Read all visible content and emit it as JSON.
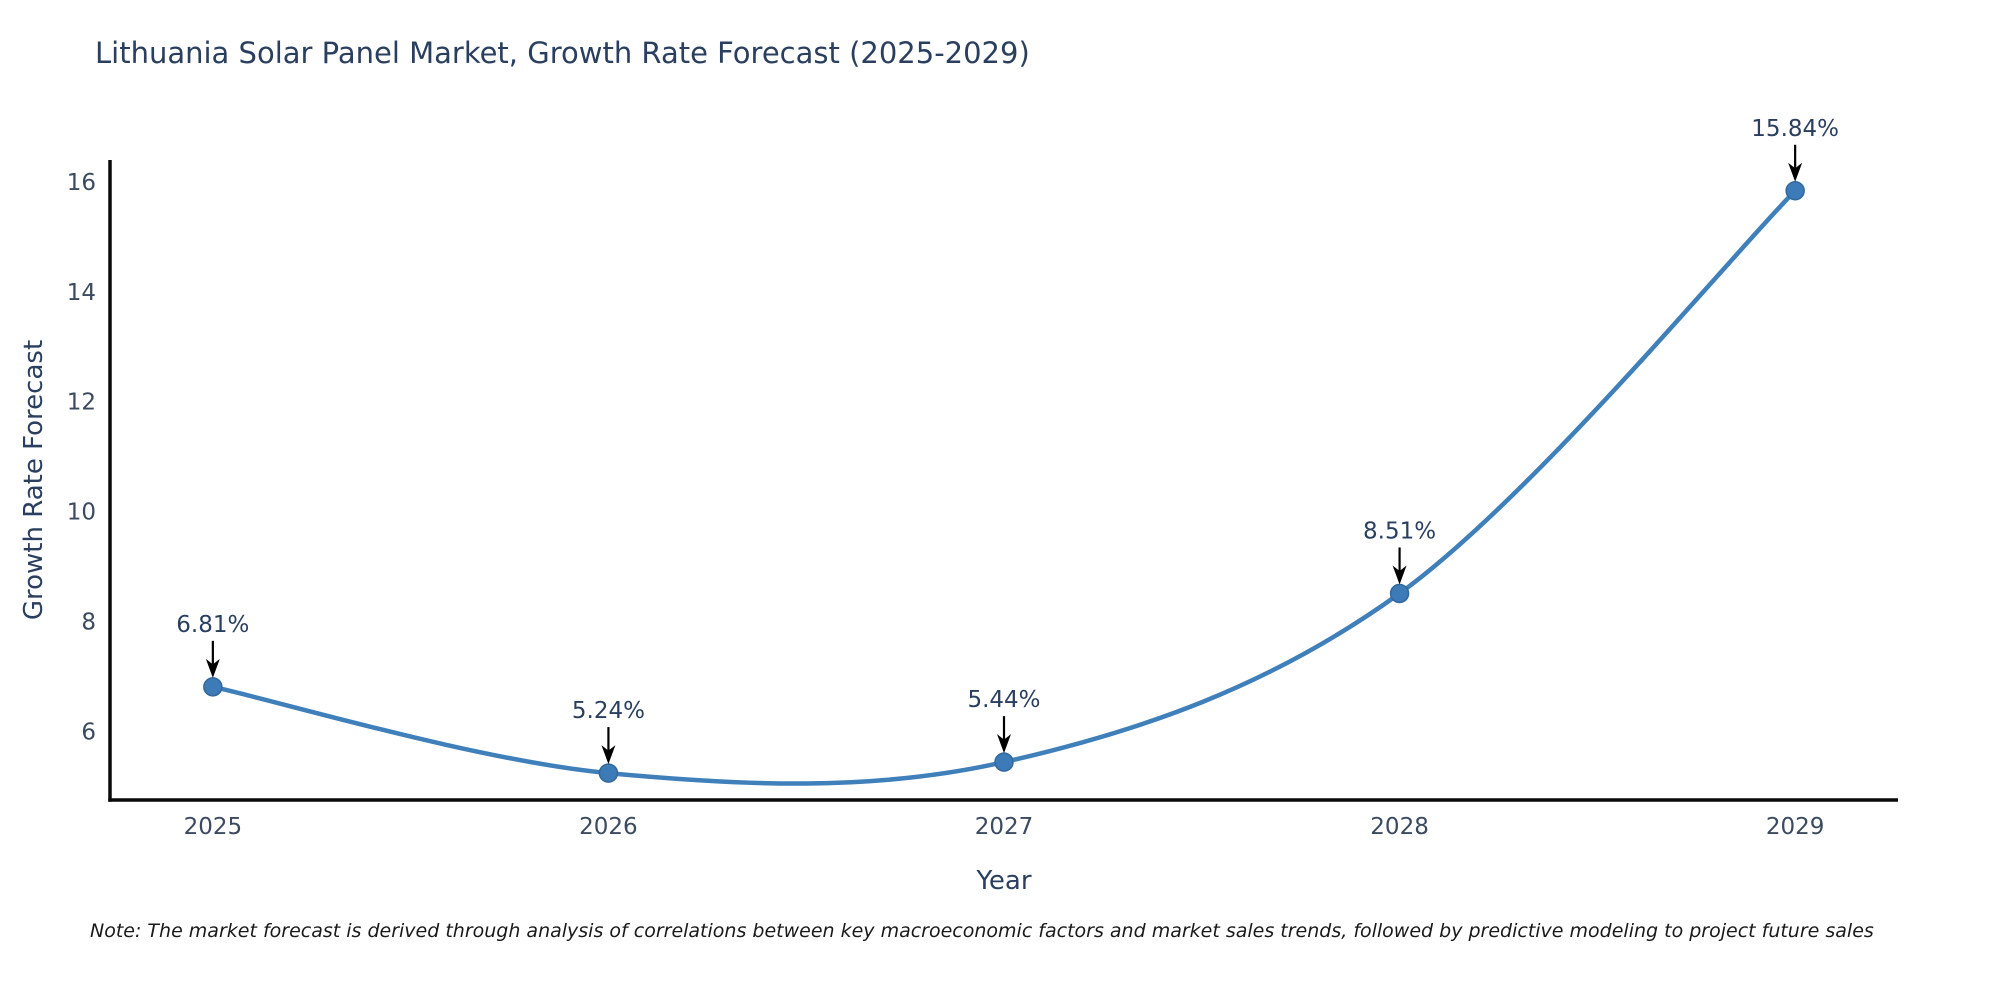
{
  "chart_data": {
    "type": "line",
    "title": "Lithuania Solar Panel Market, Growth Rate Forecast (2025-2029)",
    "xlabel": "Year",
    "ylabel": "Growth Rate Forecast",
    "note": "Note: The market forecast is derived through analysis of correlations between key macroeconomic factors and market sales trends, followed by predictive modeling to project future sales",
    "x": [
      2025,
      2026,
      2027,
      2028,
      2029
    ],
    "series": [
      {
        "name": "Growth Rate Forecast",
        "values": [
          6.81,
          5.24,
          5.44,
          8.51,
          15.84
        ]
      }
    ],
    "point_labels": [
      "6.81%",
      "5.24%",
      "5.44%",
      "8.51%",
      "15.84%"
    ],
    "xticks": [
      2025,
      2026,
      2027,
      2028,
      2029
    ],
    "yticks": [
      6,
      8,
      10,
      12,
      14,
      16
    ],
    "xlim": [
      2024.74,
      2029.26
    ],
    "ylim": [
      4.75,
      16.4
    ],
    "grid": false,
    "legend": "none",
    "line_shape": "spline",
    "colors": {
      "line": "#3f7fba",
      "marker": "#3d7ab8",
      "marker_edge": "#33689c",
      "axis": "#0a0a0a",
      "arrow": "#000000"
    }
  }
}
